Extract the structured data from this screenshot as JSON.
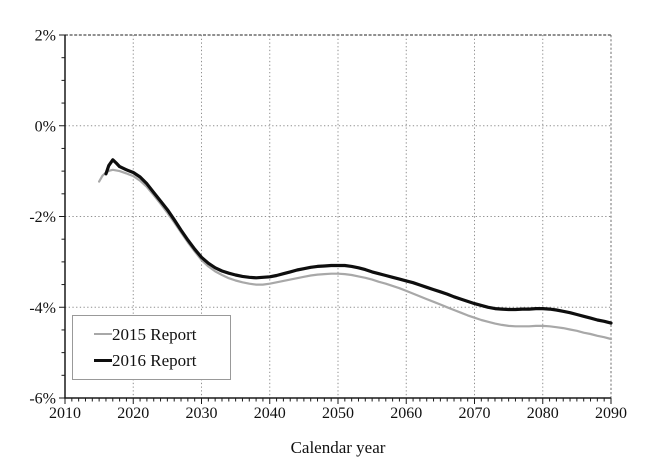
{
  "chart_data": {
    "type": "line",
    "title": "",
    "xlabel": "Calendar year",
    "ylabel": "",
    "x_axis": {
      "min": 2010,
      "max": 2090,
      "major_tick_step": 10,
      "minor_tick_step": 1,
      "tick_labels": [
        "2010",
        "2020",
        "2030",
        "2040",
        "2050",
        "2060",
        "2070",
        "2080",
        "2090"
      ]
    },
    "y_axis": {
      "min": -6,
      "max": 2,
      "unit": "%",
      "major_tick_step": 2,
      "minor_tick_step": 0.5,
      "tick_labels": [
        "2%",
        "0%",
        "-2%",
        "-4%",
        "-6%"
      ],
      "tick_values": [
        2,
        0,
        -2,
        -4,
        -6
      ]
    },
    "grid": true,
    "gridline_color": "#8f8f8f",
    "axis_color": "#1a1a1a",
    "legend_position": "lower-left",
    "series": [
      {
        "name": "2015 Report",
        "color": "#a8a8a8",
        "width": 2.2,
        "points": [
          [
            2015,
            -1.23
          ],
          [
            2015.5,
            -1.1
          ],
          [
            2016,
            -1.03
          ],
          [
            2016.5,
            -0.99
          ],
          [
            2017,
            -0.97
          ],
          [
            2018,
            -1.0
          ],
          [
            2019,
            -1.05
          ],
          [
            2020,
            -1.11
          ],
          [
            2021,
            -1.21
          ],
          [
            2022,
            -1.35
          ],
          [
            2023,
            -1.53
          ],
          [
            2024,
            -1.72
          ],
          [
            2025,
            -1.92
          ],
          [
            2026,
            -2.13
          ],
          [
            2027,
            -2.35
          ],
          [
            2028,
            -2.57
          ],
          [
            2029,
            -2.77
          ],
          [
            2030,
            -2.96
          ],
          [
            2031,
            -3.1
          ],
          [
            2032,
            -3.21
          ],
          [
            2033,
            -3.29
          ],
          [
            2034,
            -3.36
          ],
          [
            2035,
            -3.41
          ],
          [
            2036,
            -3.45
          ],
          [
            2037,
            -3.48
          ],
          [
            2038,
            -3.5
          ],
          [
            2039,
            -3.5
          ],
          [
            2040,
            -3.48
          ],
          [
            2041,
            -3.45
          ],
          [
            2042,
            -3.42
          ],
          [
            2043,
            -3.39
          ],
          [
            2044,
            -3.36
          ],
          [
            2045,
            -3.33
          ],
          [
            2046,
            -3.3
          ],
          [
            2047,
            -3.28
          ],
          [
            2048,
            -3.27
          ],
          [
            2049,
            -3.26
          ],
          [
            2050,
            -3.26
          ],
          [
            2051,
            -3.27
          ],
          [
            2052,
            -3.29
          ],
          [
            2053,
            -3.32
          ],
          [
            2054,
            -3.35
          ],
          [
            2055,
            -3.39
          ],
          [
            2056,
            -3.44
          ],
          [
            2057,
            -3.48
          ],
          [
            2058,
            -3.53
          ],
          [
            2059,
            -3.58
          ],
          [
            2060,
            -3.64
          ],
          [
            2061,
            -3.7
          ],
          [
            2062,
            -3.76
          ],
          [
            2063,
            -3.82
          ],
          [
            2064,
            -3.88
          ],
          [
            2065,
            -3.94
          ],
          [
            2066,
            -4.0
          ],
          [
            2067,
            -4.06
          ],
          [
            2068,
            -4.12
          ],
          [
            2069,
            -4.18
          ],
          [
            2070,
            -4.23
          ],
          [
            2071,
            -4.28
          ],
          [
            2072,
            -4.32
          ],
          [
            2073,
            -4.36
          ],
          [
            2074,
            -4.39
          ],
          [
            2075,
            -4.41
          ],
          [
            2076,
            -4.42
          ],
          [
            2077,
            -4.42
          ],
          [
            2078,
            -4.42
          ],
          [
            2079,
            -4.41
          ],
          [
            2080,
            -4.41
          ],
          [
            2081,
            -4.42
          ],
          [
            2082,
            -4.44
          ],
          [
            2083,
            -4.46
          ],
          [
            2084,
            -4.49
          ],
          [
            2085,
            -4.52
          ],
          [
            2086,
            -4.56
          ],
          [
            2087,
            -4.59
          ],
          [
            2088,
            -4.63
          ],
          [
            2089,
            -4.66
          ],
          [
            2090,
            -4.7
          ]
        ]
      },
      {
        "name": "2016 Report",
        "color": "#0e0e0e",
        "width": 3.2,
        "points": [
          [
            2016,
            -1.06
          ],
          [
            2016.4,
            -0.88
          ],
          [
            2017,
            -0.75
          ],
          [
            2017.5,
            -0.82
          ],
          [
            2018,
            -0.9
          ],
          [
            2019,
            -0.97
          ],
          [
            2020,
            -1.03
          ],
          [
            2021,
            -1.13
          ],
          [
            2022,
            -1.28
          ],
          [
            2023,
            -1.47
          ],
          [
            2024,
            -1.66
          ],
          [
            2025,
            -1.85
          ],
          [
            2026,
            -2.07
          ],
          [
            2027,
            -2.3
          ],
          [
            2028,
            -2.52
          ],
          [
            2029,
            -2.72
          ],
          [
            2030,
            -2.9
          ],
          [
            2031,
            -3.03
          ],
          [
            2032,
            -3.13
          ],
          [
            2033,
            -3.2
          ],
          [
            2034,
            -3.25
          ],
          [
            2035,
            -3.29
          ],
          [
            2036,
            -3.32
          ],
          [
            2037,
            -3.34
          ],
          [
            2038,
            -3.35
          ],
          [
            2039,
            -3.34
          ],
          [
            2040,
            -3.33
          ],
          [
            2041,
            -3.3
          ],
          [
            2042,
            -3.26
          ],
          [
            2043,
            -3.22
          ],
          [
            2044,
            -3.18
          ],
          [
            2045,
            -3.15
          ],
          [
            2046,
            -3.12
          ],
          [
            2047,
            -3.1
          ],
          [
            2048,
            -3.09
          ],
          [
            2049,
            -3.08
          ],
          [
            2050,
            -3.08
          ],
          [
            2051,
            -3.08
          ],
          [
            2052,
            -3.1
          ],
          [
            2053,
            -3.13
          ],
          [
            2054,
            -3.17
          ],
          [
            2055,
            -3.22
          ],
          [
            2056,
            -3.26
          ],
          [
            2057,
            -3.3
          ],
          [
            2058,
            -3.34
          ],
          [
            2059,
            -3.38
          ],
          [
            2060,
            -3.42
          ],
          [
            2061,
            -3.46
          ],
          [
            2062,
            -3.51
          ],
          [
            2063,
            -3.56
          ],
          [
            2064,
            -3.61
          ],
          [
            2065,
            -3.66
          ],
          [
            2066,
            -3.71
          ],
          [
            2067,
            -3.77
          ],
          [
            2068,
            -3.82
          ],
          [
            2069,
            -3.87
          ],
          [
            2070,
            -3.92
          ],
          [
            2071,
            -3.96
          ],
          [
            2072,
            -4.0
          ],
          [
            2073,
            -4.03
          ],
          [
            2074,
            -4.04
          ],
          [
            2075,
            -4.05
          ],
          [
            2076,
            -4.05
          ],
          [
            2077,
            -4.04
          ],
          [
            2078,
            -4.04
          ],
          [
            2079,
            -4.03
          ],
          [
            2080,
            -4.03
          ],
          [
            2081,
            -4.04
          ],
          [
            2082,
            -4.06
          ],
          [
            2083,
            -4.09
          ],
          [
            2084,
            -4.12
          ],
          [
            2085,
            -4.16
          ],
          [
            2086,
            -4.2
          ],
          [
            2087,
            -4.24
          ],
          [
            2088,
            -4.28
          ],
          [
            2089,
            -4.31
          ],
          [
            2090,
            -4.35
          ]
        ]
      }
    ]
  },
  "legend": {
    "items": [
      {
        "label": "2015 Report"
      },
      {
        "label": "2016 Report"
      }
    ]
  }
}
